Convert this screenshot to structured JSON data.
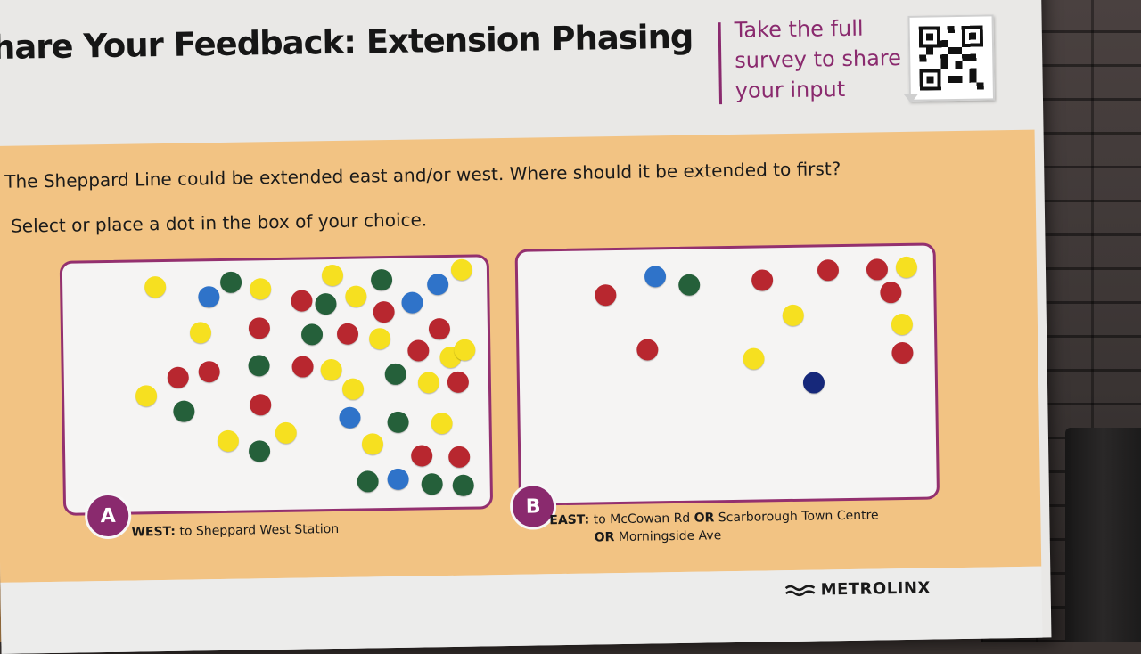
{
  "header": {
    "title": "hare Your Feedback: Extension Phasing",
    "survey_text": "Take the full survey to share your input"
  },
  "panel": {
    "question": "The Sheppard Line could be extended east and/or west. Where should it be extended to first?",
    "instruction": "Select or place a dot in the box of your choice."
  },
  "options": {
    "a": {
      "badge": "A",
      "label_bold": "WEST:",
      "label_text": "to Sheppard West Station"
    },
    "b": {
      "badge": "B",
      "line1_bold": "EAST:",
      "line1_text_1": "to McCowan Rd",
      "line1_bold_2": "OR",
      "line1_text_2": "Scarborough Town Centre",
      "line2_bold": "OR",
      "line2_text": "Morningside Ave"
    }
  },
  "footer": {
    "brand": "METROLINX"
  },
  "colors": {
    "accent": "#8a2a6e",
    "panel": "#f2c383",
    "dot_yellow": "#f6e020",
    "dot_red": "#b8272f",
    "dot_green": "#25603a",
    "dot_blue": "#2f73c9",
    "dot_navy": "#16287a"
  }
}
